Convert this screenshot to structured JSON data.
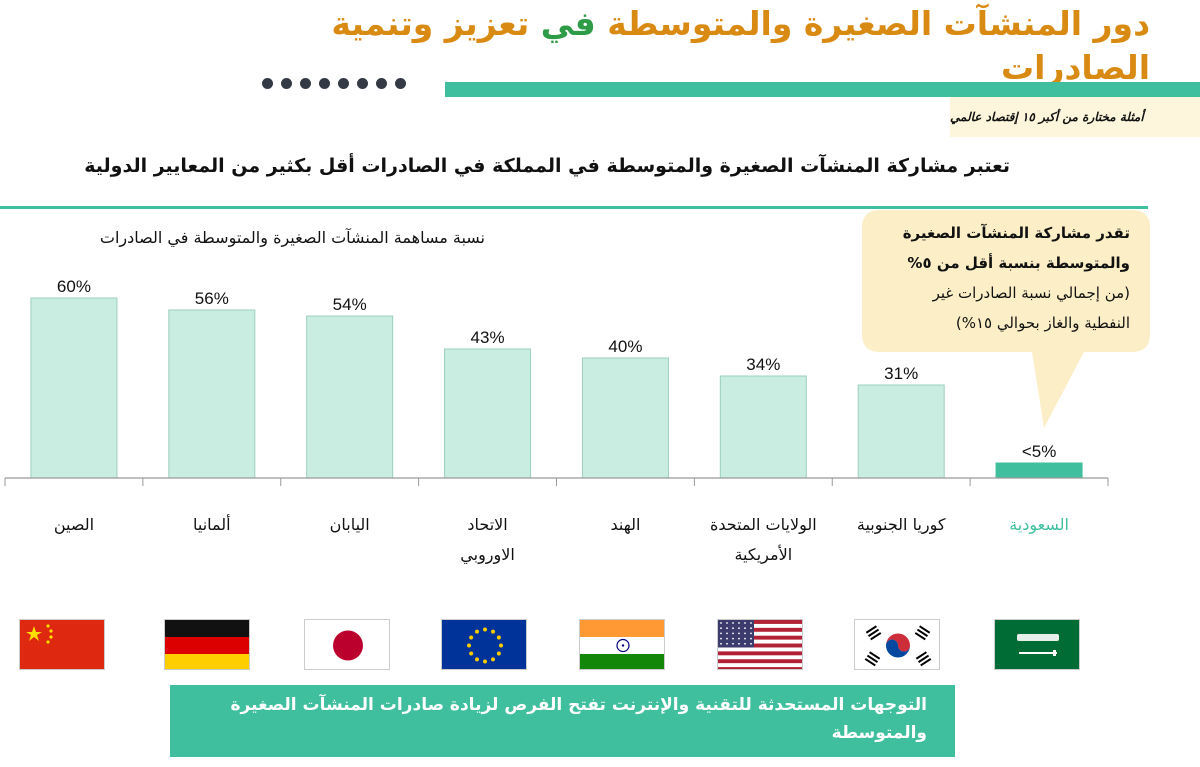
{
  "header": {
    "title_part1": "دور المنشآت الصغيرة والمتوسطة ",
    "title_part2": "في ",
    "title_part3": "تعزيز وتنمية الصادرات"
  },
  "examples_note": "أمثلة مختارة من أكبر ١٥ إقتصاد عالمي",
  "headline": "تعتبر مشاركة المنشآت الصغيرة والمتوسطة في المملكة في الصادرات أقل بكثير من المعايير الدولية",
  "callout": {
    "line1": "تقدر مشاركة المنشآت الصغيرة",
    "line2": "والمتوسطة بنسبة أقل من ٥%",
    "line3": "(من إجمالي نسبة الصادرات غير",
    "line4": "النفطية والغاز بحوالي ١٥%)"
  },
  "bottom_banner": "التوجهات المستحدثة للتقنية والإنترنت تفتح الفرص لزيادة صادرات المنشآت الصغيرة والمتوسطة",
  "colors": {
    "title_orange": "#d98a12",
    "title_dark": "#2b2f36",
    "title_green": "#2e9b47",
    "bar_fill": "#c9ede1",
    "bar_stroke": "#9ccfbf",
    "highlight": "#3fbf9e",
    "callout_bg": "#fcefc7"
  },
  "chart_data": {
    "type": "bar",
    "title": "نسبة مساهمة المنشآت الصغيرة والمتوسطة في الصادرات",
    "categories": [
      [
        "الصين"
      ],
      [
        "ألمانيا"
      ],
      [
        "اليابان"
      ],
      [
        "الاتحاد",
        "الاوروبي"
      ],
      [
        "الهند"
      ],
      [
        "الولايات المتحدة",
        "الأمريكية"
      ],
      [
        "كوريا الجنوبية"
      ],
      [
        "السعودية"
      ]
    ],
    "values": [
      60,
      56,
      54,
      43,
      40,
      34,
      31,
      5
    ],
    "value_labels": [
      "60%",
      "56%",
      "54%",
      "43%",
      "40%",
      "34%",
      "31%",
      "<5%"
    ],
    "highlight_index": 7,
    "ylim": [
      0,
      60
    ],
    "grid": false,
    "legend": "none"
  },
  "flags": [
    "china-flag-icon",
    "germany-flag-icon",
    "japan-flag-icon",
    "eu-flag-icon",
    "india-flag-icon",
    "usa-flag-icon",
    "south-korea-flag-icon",
    "saudi-flag-icon"
  ]
}
